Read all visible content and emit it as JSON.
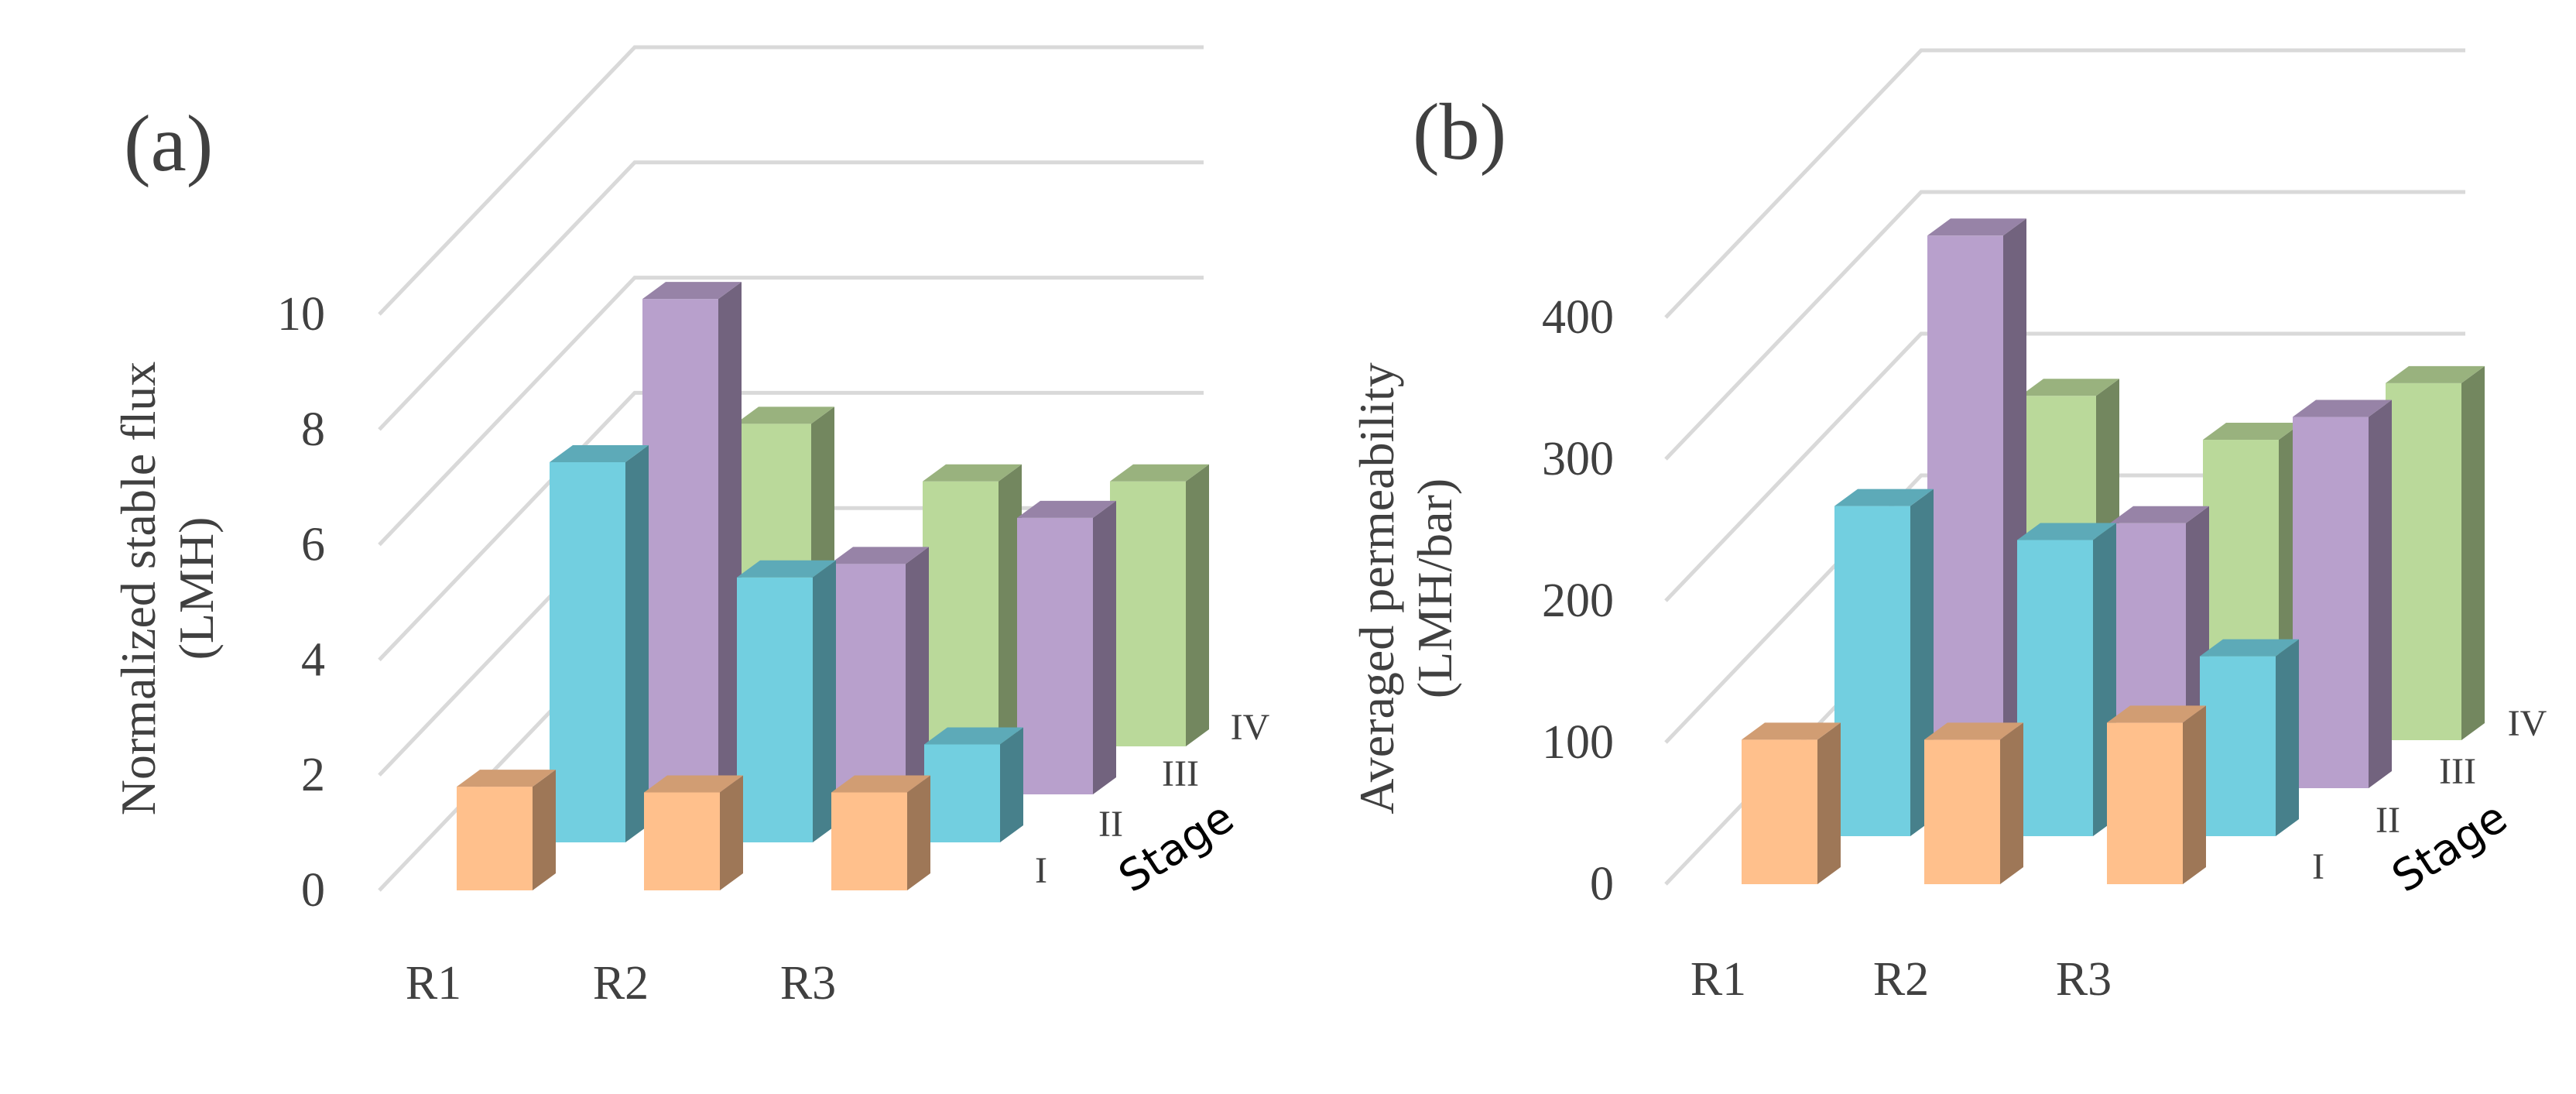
{
  "colors": {
    "I": "#ffc08c",
    "II": "#72cfe0",
    "III": "#b8a0cc",
    "IV": "#bad99a"
  },
  "chart_data": [
    {
      "type": "bar",
      "panel_label": "(a)",
      "ylabel": "Normalized stable flux",
      "ylabel_unit": "(LMH)",
      "categories": [
        "R1",
        "R2",
        "R3"
      ],
      "depth_axis_title": "Stage",
      "depth_categories": [
        "I",
        "II",
        "III",
        "IV"
      ],
      "yticks": [
        "0",
        "2",
        "4",
        "6",
        "8",
        "10"
      ],
      "ylim": [
        0,
        12
      ],
      "series": [
        {
          "name": "I",
          "values": [
            1.8,
            1.7,
            1.7
          ]
        },
        {
          "name": "II",
          "values": [
            6.6,
            4.6,
            1.7
          ]
        },
        {
          "name": "III",
          "values": [
            8.6,
            4.0,
            4.8
          ]
        },
        {
          "name": "IV",
          "values": [
            5.6,
            4.6,
            4.6
          ]
        }
      ]
    },
    {
      "type": "bar",
      "panel_label": "(b)",
      "ylabel": "Averaged permeability",
      "ylabel_unit": "(LMH/bar)",
      "categories": [
        "R1",
        "R2",
        "R3"
      ],
      "depth_axis_title": "Stage",
      "depth_categories": [
        "I",
        "II",
        "III",
        "IV"
      ],
      "yticks": [
        "0",
        "100",
        "200",
        "300",
        "400"
      ],
      "ylim": [
        0,
        500
      ],
      "series": [
        {
          "name": "I",
          "values": [
            102,
            102,
            114
          ]
        },
        {
          "name": "II",
          "values": [
            233,
            209,
            127
          ]
        },
        {
          "name": "III",
          "values": [
            390,
            187,
            262
          ]
        },
        {
          "name": "IV",
          "values": [
            243,
            212,
            252
          ]
        }
      ]
    }
  ]
}
